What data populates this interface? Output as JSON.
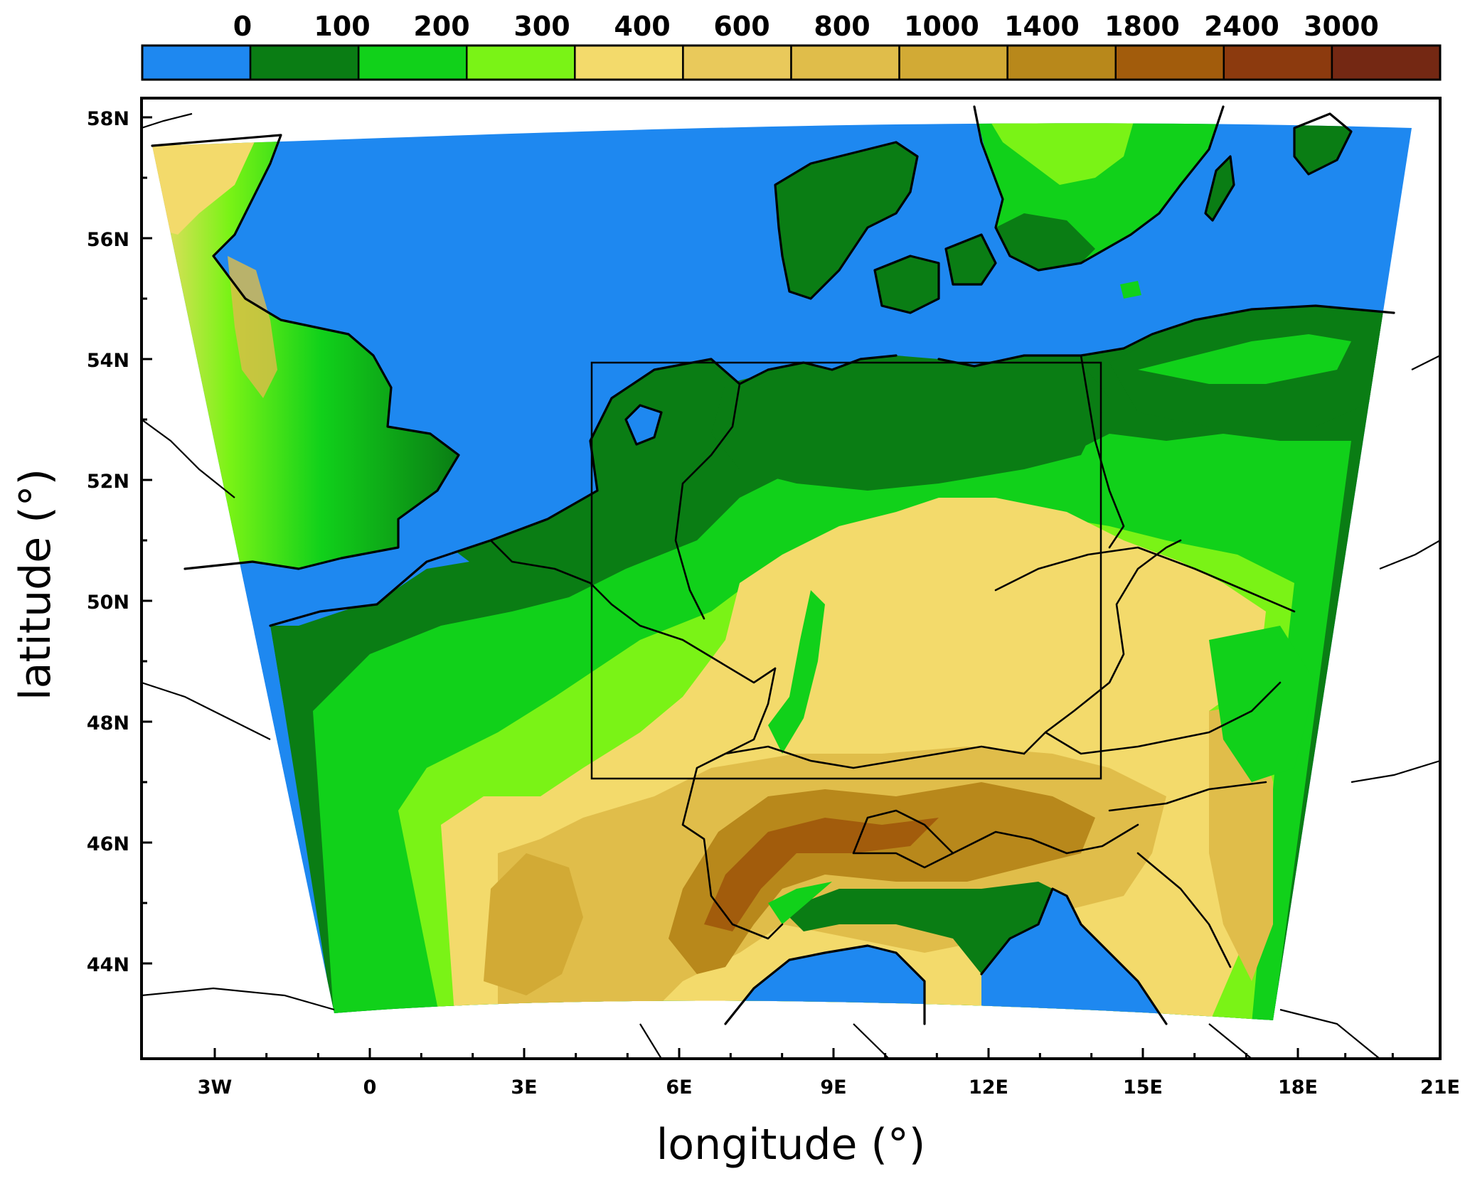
{
  "colorbar": {
    "labels": [
      "0",
      "100",
      "200",
      "300",
      "400",
      "600",
      "800",
      "1000",
      "1400",
      "1800",
      "2400",
      "3000"
    ],
    "colors": [
      "#1e88f0",
      "#0a7d14",
      "#11d11a",
      "#7af316",
      "#f3da6b",
      "#e9c95b",
      "#e0bd4a",
      "#d2aa35",
      "#b8881b",
      "#a25c0c",
      "#8c3a0e",
      "#742813"
    ]
  },
  "map": {
    "x_tick_labels": [
      "3W",
      "0",
      "3E",
      "6E",
      "9E",
      "12E",
      "15E",
      "18E",
      "21E"
    ],
    "y_tick_labels": [
      "58N",
      "56N",
      "54N",
      "52N",
      "50N",
      "48N",
      "46N",
      "44N"
    ],
    "x_title": "longitude (°)",
    "y_title": "latitude (°)",
    "extent": {
      "lon_min": -4.5,
      "lon_max": 21,
      "lat_min": 42.7,
      "lat_max": 58.3
    },
    "inner_domain": {
      "lon_min": 4.4,
      "lon_max": 14.4,
      "lat_min": 47.1,
      "lat_max": 54.0
    },
    "outside_color": "#ffffff",
    "frame_color": "#000000"
  }
}
